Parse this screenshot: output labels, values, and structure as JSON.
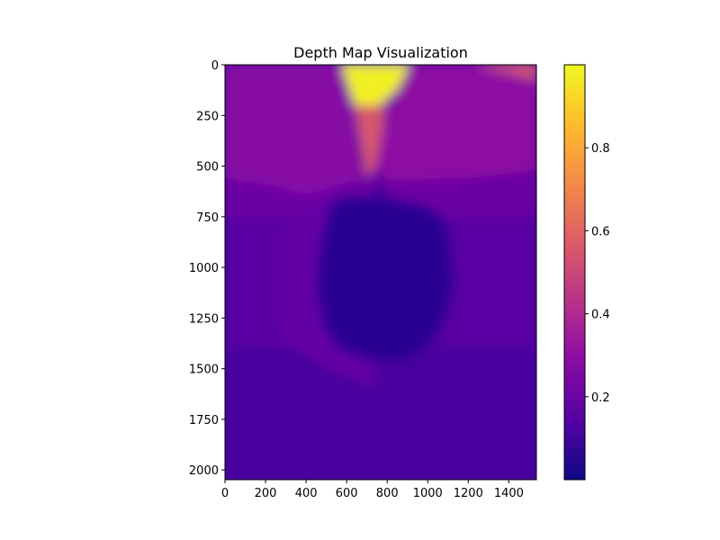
{
  "chart_data": [
    {
      "type": "heatmap",
      "title": "Depth Map Visualization",
      "xlabel": "",
      "ylabel": "",
      "colormap": "plasma",
      "xlim": [
        0,
        1536
      ],
      "ylim": [
        2048,
        0
      ],
      "x_ticks": [
        0,
        200,
        400,
        600,
        800,
        1000,
        1200,
        1400
      ],
      "y_ticks": [
        0,
        250,
        500,
        750,
        1000,
        1250,
        1500,
        1750,
        2000
      ],
      "grid": false,
      "regions": [
        {
          "shape": "background",
          "value": 0.12
        },
        {
          "shape": "rect",
          "x0": 0,
          "y0": 0,
          "x1": 1536,
          "y1": 750,
          "value": 0.2
        },
        {
          "shape": "rect",
          "x0": 0,
          "y0": 750,
          "x1": 1536,
          "y1": 1400,
          "value": 0.15
        },
        {
          "shape": "polygon",
          "points": [
            [
              0,
              0
            ],
            [
              580,
              0
            ],
            [
              600,
              120
            ],
            [
              640,
              300
            ],
            [
              660,
              450
            ],
            [
              690,
              560
            ],
            [
              540,
              600
            ],
            [
              400,
              640
            ],
            [
              200,
              590
            ],
            [
              0,
              560
            ]
          ],
          "value": 0.28
        },
        {
          "shape": "polygon",
          "points": [
            [
              900,
              0
            ],
            [
              1460,
              0
            ],
            [
              1536,
              80
            ],
            [
              1536,
              520
            ],
            [
              1200,
              560
            ],
            [
              800,
              570
            ],
            [
              740,
              500
            ],
            [
              770,
              350
            ],
            [
              820,
              200
            ],
            [
              900,
              50
            ]
          ],
          "value": 0.3
        },
        {
          "shape": "polygon",
          "points": [
            [
              575,
              0
            ],
            [
              910,
              0
            ],
            [
              850,
              120
            ],
            [
              760,
              200
            ],
            [
              640,
              200
            ]
          ],
          "value": 0.98
        },
        {
          "shape": "polygon",
          "points": [
            [
              640,
              200
            ],
            [
              790,
              200
            ],
            [
              770,
              350
            ],
            [
              740,
              500
            ],
            [
              700,
              560
            ]
          ],
          "value": 0.55
        },
        {
          "shape": "polygon",
          "points": [
            [
              1230,
              0
            ],
            [
              1536,
              0
            ],
            [
              1536,
              80
            ],
            [
              1480,
              60
            ]
          ],
          "value": 0.55
        },
        {
          "shape": "polygon",
          "points": [
            [
              480,
              680
            ],
            [
              600,
              640
            ],
            [
              720,
              700
            ],
            [
              740,
              1600
            ],
            [
              500,
              1500
            ],
            [
              260,
              1350
            ],
            [
              240,
              850
            ]
          ],
          "value": 0.18
        },
        {
          "shape": "polygon",
          "points": [
            [
              520,
              690
            ],
            [
              560,
              660
            ],
            [
              680,
              645
            ],
            [
              820,
              655
            ],
            [
              980,
              690
            ],
            [
              1080,
              750
            ],
            [
              1110,
              860
            ],
            [
              1130,
              1100
            ],
            [
              1080,
              1280
            ],
            [
              1000,
              1400
            ],
            [
              880,
              1460
            ],
            [
              700,
              1460
            ],
            [
              560,
              1400
            ],
            [
              490,
              1300
            ],
            [
              450,
              1100
            ],
            [
              465,
              900
            ]
          ],
          "value": 0.06
        },
        {
          "shape": "rect",
          "x0": 740,
          "y0": 590,
          "x1": 780,
          "y1": 660,
          "value": 0.08
        }
      ],
      "colorbar": {
        "range": [
          0.0,
          1.0
        ],
        "ticks": [
          0.2,
          0.4,
          0.6,
          0.8
        ]
      }
    }
  ]
}
